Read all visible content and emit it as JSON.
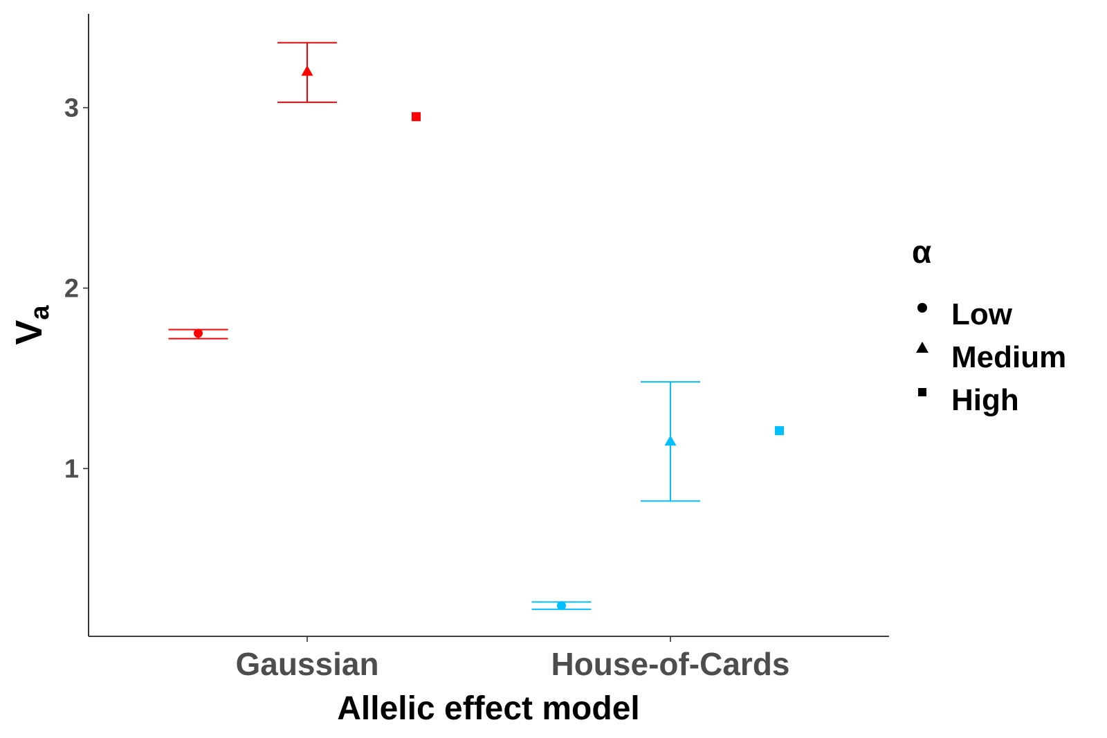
{
  "chart_data": {
    "type": "scatter",
    "xlabel": "Allelic effect model",
    "ylabel_main": "V",
    "ylabel_sub": "a",
    "categories": [
      "Gaussian",
      "House-of-Cards"
    ],
    "y_ticks": [
      "1",
      "2",
      "3"
    ],
    "y_tick_values": [
      1,
      2,
      3
    ],
    "ylim": [
      0.07,
      3.52
    ],
    "group_colors": {
      "Gaussian": "#ff0000",
      "House-of-Cards": "#00bfff"
    },
    "legend": {
      "title": "α",
      "position": "right",
      "items": [
        {
          "label": "Low",
          "shape": "circle"
        },
        {
          "label": "Medium",
          "shape": "triangle"
        },
        {
          "label": "High",
          "shape": "square"
        }
      ]
    },
    "series": [
      {
        "level": "Low",
        "shape": "circle",
        "offset": -0.3,
        "points": [
          {
            "category": "Gaussian",
            "y": 1.75,
            "lower": 1.72,
            "upper": 1.77
          },
          {
            "category": "House-of-Cards",
            "y": 0.24,
            "lower": 0.22,
            "upper": 0.26
          }
        ]
      },
      {
        "level": "Medium",
        "shape": "triangle",
        "offset": 0.0,
        "points": [
          {
            "category": "Gaussian",
            "y": 3.2,
            "lower": 3.03,
            "upper": 3.36
          },
          {
            "category": "House-of-Cards",
            "y": 1.15,
            "lower": 0.82,
            "upper": 1.48
          }
        ]
      },
      {
        "level": "High",
        "shape": "square",
        "offset": 0.3,
        "points": [
          {
            "category": "Gaussian",
            "y": 2.95
          },
          {
            "category": "House-of-Cards",
            "y": 1.21
          }
        ]
      }
    ]
  }
}
